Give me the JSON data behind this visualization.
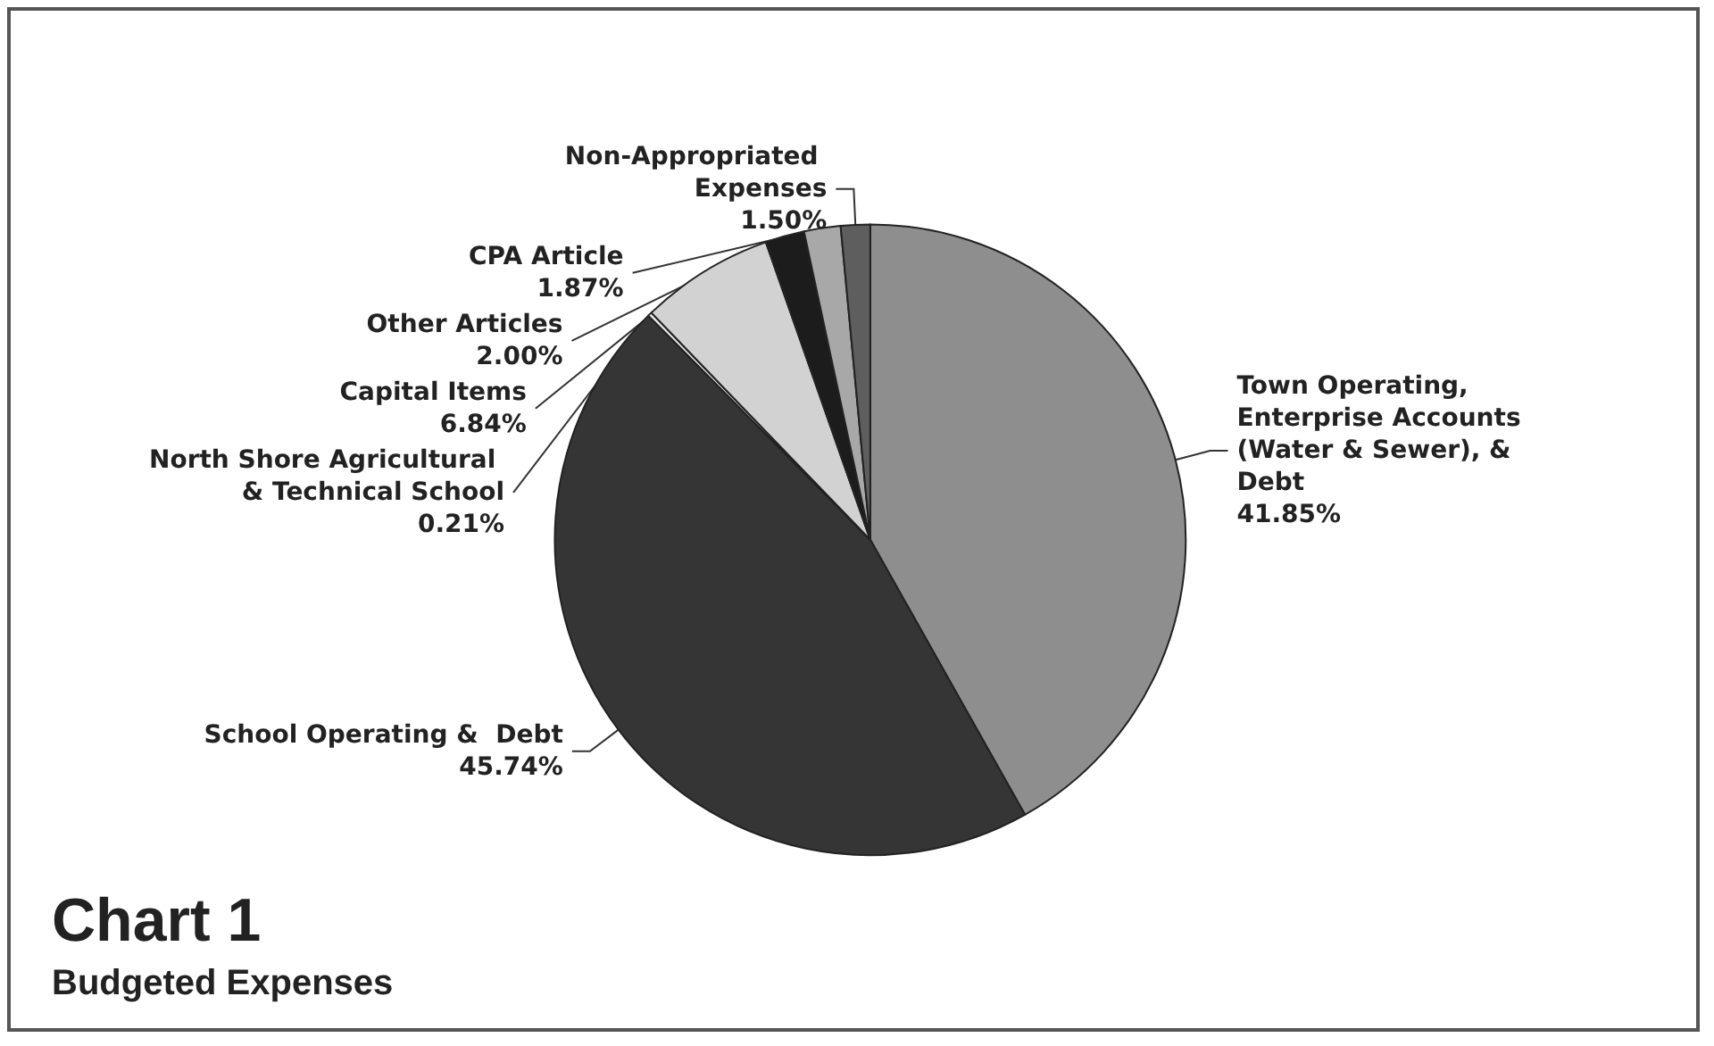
{
  "chart_data": {
    "type": "pie",
    "title": "Chart 1",
    "subtitle": "Budgeted Expenses",
    "categories": [
      "Town Operating, Enterprise Accounts (Water & Sewer), & Debt",
      "School Operating &  Debt",
      "North Shore Agricultural & Technical School",
      "Capital Items",
      "Other Articles",
      "CPA Article",
      "Non-Appropriated Expenses"
    ],
    "values": [
      41.85,
      45.74,
      0.21,
      6.84,
      2.0,
      1.87,
      1.5
    ],
    "value_labels": [
      "41.85%",
      "45.74%",
      "0.21%",
      "6.84%",
      "2.00%",
      "1.87%",
      "1.50%"
    ],
    "colors": [
      "#8e8e8e",
      "#353535",
      "#e6e6e6",
      "#d2d2d2",
      "#1c1c1c",
      "#a8a8a8",
      "#5e5e5e"
    ],
    "legend": false
  }
}
